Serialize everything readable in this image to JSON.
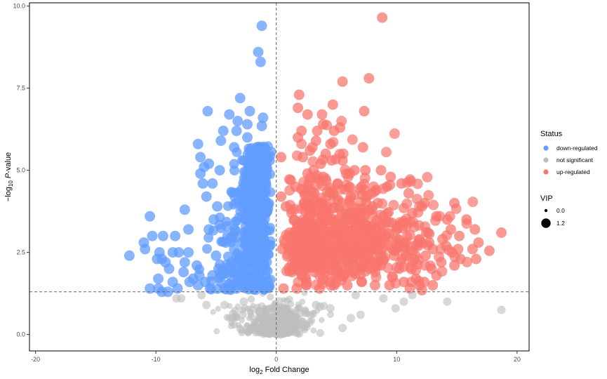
{
  "chart_data": {
    "type": "scatter",
    "title": "",
    "xlabel": {
      "prefix": "log",
      "sub": "2",
      "suffix": " Fold Change"
    },
    "ylabel": {
      "prefix": "−log",
      "sub": "10",
      "mid": " ",
      "italic": "P",
      "suffix": "-value"
    },
    "xlim": [
      -20.5,
      21
    ],
    "ylim": [
      -0.5,
      10.1
    ],
    "x_ticks": [
      {
        "value": -20,
        "label": "-20"
      },
      {
        "value": -10,
        "label": "-10"
      },
      {
        "value": 0,
        "label": "0"
      },
      {
        "value": 10,
        "label": "10"
      },
      {
        "value": 20,
        "label": "20"
      }
    ],
    "y_ticks": [
      {
        "value": 0,
        "label": "0.0"
      },
      {
        "value": 2.5,
        "label": "2.5"
      },
      {
        "value": 5,
        "label": "5.0"
      },
      {
        "value": 7.5,
        "label": "7.5"
      },
      {
        "value": 10,
        "label": "10.0"
      }
    ],
    "vline_x": 0,
    "hline_y": 1.3,
    "legend_status": {
      "title": "Status",
      "items": [
        {
          "label": "down-regulated",
          "color": "#619CFF"
        },
        {
          "label": "not significant",
          "color": "#BEBEBE"
        },
        {
          "label": "up-regulated",
          "color": "#F8766D"
        }
      ]
    },
    "legend_vip": {
      "title": "VIP",
      "items": [
        {
          "label": "0.0",
          "vip": 0.0
        },
        {
          "label": "1.2",
          "vip": 1.2
        }
      ]
    },
    "series": [
      {
        "name": "down-regulated",
        "color": "#619CFF",
        "points": [
          [
            -1.2,
            9.4
          ],
          [
            -1.5,
            8.6
          ],
          [
            -1.3,
            8.3
          ],
          [
            -3.0,
            7.2
          ],
          [
            -5.7,
            6.8
          ],
          [
            -3.9,
            6.7
          ],
          [
            -2.2,
            6.8
          ],
          [
            -1.1,
            6.6
          ],
          [
            -3.2,
            6.5
          ],
          [
            -2.4,
            6.4
          ],
          [
            -1.2,
            6.35
          ],
          [
            -4.4,
            6.2
          ],
          [
            -3.3,
            6.2
          ],
          [
            -2.4,
            6.0
          ],
          [
            -6.5,
            5.8
          ],
          [
            -4.6,
            5.9
          ],
          [
            -3.5,
            5.7
          ],
          [
            -6.3,
            5.4
          ],
          [
            -5.6,
            5.2
          ],
          [
            -6.0,
            5.1
          ],
          [
            -4.7,
            5.0
          ],
          [
            -6.3,
            4.9
          ],
          [
            -7.6,
            3.8
          ],
          [
            -5.3,
            4.6
          ],
          [
            -6.1,
            4.6
          ],
          [
            -5.8,
            4.2
          ],
          [
            -4.9,
            3.9
          ],
          [
            -5.2,
            3.5
          ],
          [
            -7.3,
            3.2
          ],
          [
            -5.6,
            3.2
          ],
          [
            -4.1,
            3.3
          ],
          [
            -10.5,
            3.6
          ],
          [
            -10.3,
            3.0
          ],
          [
            -9.4,
            3.0
          ],
          [
            -8.4,
            3.0
          ],
          [
            -11.0,
            2.8
          ],
          [
            -10.9,
            2.6
          ],
          [
            -9.7,
            2.5
          ],
          [
            -8.6,
            2.5
          ],
          [
            -8.1,
            2.5
          ],
          [
            -7.3,
            2.5
          ],
          [
            -12.2,
            2.4
          ],
          [
            -9.9,
            2.3
          ],
          [
            -9.5,
            2.3
          ],
          [
            -9.2,
            2.2
          ],
          [
            -8.9,
            2.0
          ],
          [
            -7.6,
            2.2
          ],
          [
            -6.6,
            2.1
          ],
          [
            -7.7,
            1.9
          ],
          [
            -6.4,
            1.8
          ],
          [
            -5.3,
            1.8
          ],
          [
            -4.8,
            2.0
          ],
          [
            -10.5,
            1.4
          ],
          [
            -9.8,
            1.4
          ],
          [
            -9.5,
            1.3
          ],
          [
            -9.0,
            1.3
          ],
          [
            -8.6,
            1.6
          ],
          [
            -8.2,
            1.4
          ],
          [
            -7.2,
            1.6
          ],
          [
            -6.5,
            1.5
          ],
          [
            -5.5,
            1.4
          ],
          [
            -4.3,
            1.4
          ],
          [
            -3.8,
            1.4
          ],
          [
            -3.3,
            1.4
          ],
          [
            -9.8,
            1.7
          ],
          [
            -6.9,
            1.7
          ],
          [
            -5.9,
            1.6
          ],
          [
            -4.6,
            1.6
          ],
          [
            -3.6,
            1.9
          ],
          [
            -3.2,
            1.6
          ],
          [
            -2.8,
            1.5
          ],
          [
            -4.2,
            2.8
          ],
          [
            -3.5,
            2.6
          ],
          [
            -5.0,
            2.4
          ],
          [
            -3.7,
            2.2
          ],
          [
            -2.9,
            2.0
          ],
          [
            -4.4,
            1.9
          ]
        ]
      },
      {
        "name": "up-regulated",
        "color": "#F8766D",
        "points": [
          [
            8.8,
            9.65
          ],
          [
            7.7,
            7.8
          ],
          [
            5.5,
            7.7
          ],
          [
            1.9,
            7.3
          ],
          [
            1.8,
            6.9
          ],
          [
            7.3,
            6.8
          ],
          [
            4.7,
            7.0
          ],
          [
            2.6,
            6.7
          ],
          [
            3.8,
            6.7
          ],
          [
            3.9,
            6.4
          ],
          [
            5.3,
            6.3
          ],
          [
            4.8,
            6.2
          ],
          [
            3.4,
            6.2
          ],
          [
            2.1,
            6.2
          ],
          [
            1.8,
            6.0
          ],
          [
            3.3,
            5.9
          ],
          [
            4.5,
            5.8
          ],
          [
            3.0,
            5.7
          ],
          [
            7.2,
            5.7
          ],
          [
            4.1,
            5.5
          ],
          [
            5.5,
            5.3
          ],
          [
            2.2,
            5.4
          ],
          [
            0.4,
            5.4
          ],
          [
            3.7,
            5.2
          ],
          [
            6.5,
            5.0
          ],
          [
            7.4,
            5.0
          ],
          [
            6.1,
            4.9
          ],
          [
            8.7,
            5.0
          ],
          [
            9.5,
            4.8
          ],
          [
            10.4,
            4.6
          ],
          [
            11.0,
            4.3
          ],
          [
            9.2,
            4.5
          ],
          [
            8.3,
            4.4
          ],
          [
            7.3,
            4.4
          ],
          [
            6.2,
            4.2
          ],
          [
            4.5,
            4.3
          ],
          [
            3.0,
            4.1
          ],
          [
            2.3,
            4.0
          ],
          [
            1.6,
            4.5
          ],
          [
            0.4,
            4.2
          ],
          [
            12.3,
            4.0
          ],
          [
            12.1,
            3.9
          ],
          [
            14.8,
            4.0
          ],
          [
            11.3,
            3.7
          ],
          [
            13.3,
            3.6
          ],
          [
            14.2,
            3.5
          ],
          [
            15.8,
            3.5
          ],
          [
            16.5,
            3.2
          ],
          [
            14.5,
            3.2
          ],
          [
            18.7,
            3.1
          ],
          [
            12.6,
            3.1
          ],
          [
            15.2,
            3.0
          ],
          [
            13.8,
            2.9
          ],
          [
            11.9,
            2.9
          ],
          [
            16.8,
            2.8
          ],
          [
            14.1,
            2.7
          ],
          [
            12.7,
            2.8
          ],
          [
            10.6,
            2.7
          ],
          [
            13.0,
            2.6
          ],
          [
            15.1,
            2.6
          ],
          [
            16.3,
            2.6
          ],
          [
            17.7,
            2.55
          ],
          [
            14.6,
            2.5
          ],
          [
            12.4,
            2.4
          ],
          [
            16.6,
            2.3
          ],
          [
            15.3,
            2.3
          ],
          [
            13.7,
            2.2
          ],
          [
            11.3,
            2.2
          ],
          [
            14.8,
            2.1
          ],
          [
            12.9,
            2.0
          ],
          [
            10.2,
            2.0
          ],
          [
            13.3,
            1.8
          ],
          [
            11.6,
            1.7
          ],
          [
            12.3,
            1.6
          ],
          [
            10.6,
            1.6
          ],
          [
            11.9,
            1.5
          ],
          [
            13.0,
            1.5
          ],
          [
            11.1,
            1.4
          ],
          [
            12.1,
            1.35
          ],
          [
            9.4,
            1.5
          ],
          [
            8.2,
            1.5
          ],
          [
            7.1,
            1.6
          ],
          [
            5.9,
            1.5
          ],
          [
            4.8,
            1.5
          ],
          [
            3.6,
            1.4
          ],
          [
            2.5,
            1.5
          ],
          [
            1.7,
            1.4
          ],
          [
            0.6,
            1.4
          ],
          [
            10.0,
            3.2
          ],
          [
            9.1,
            3.0
          ],
          [
            8.4,
            2.8
          ],
          [
            7.6,
            2.6
          ],
          [
            6.6,
            2.5
          ],
          [
            5.8,
            2.3
          ],
          [
            4.9,
            2.1
          ],
          [
            4.0,
            2.0
          ],
          [
            3.2,
            1.9
          ],
          [
            2.4,
            2.0
          ],
          [
            1.3,
            1.9
          ],
          [
            9.6,
            3.4
          ],
          [
            8.9,
            3.6
          ],
          [
            7.9,
            3.3
          ],
          [
            6.9,
            3.1
          ],
          [
            5.6,
            3.3
          ],
          [
            4.4,
            3.0
          ],
          [
            3.4,
            2.8
          ],
          [
            2.1,
            2.7
          ],
          [
            1.0,
            3.0
          ],
          [
            0.5,
            2.6
          ],
          [
            9.8,
            2.4
          ],
          [
            8.7,
            2.1
          ],
          [
            7.8,
            2.0
          ],
          [
            6.3,
            1.9
          ],
          [
            5.2,
            1.9
          ],
          [
            11.8,
            2.7
          ],
          [
            10.8,
            2.4
          ],
          [
            6.1,
            3.7
          ],
          [
            4.2,
            3.7
          ],
          [
            2.8,
            3.4
          ],
          [
            1.5,
            3.5
          ],
          [
            0.8,
            3.9
          ],
          [
            8.0,
            3.9
          ],
          [
            5.1,
            4.6
          ],
          [
            3.9,
            4.8
          ],
          [
            2.6,
            4.9
          ],
          [
            1.2,
            4.7
          ],
          [
            3.1,
            5.0
          ],
          [
            4.6,
            5.3
          ],
          [
            2.8,
            5.6
          ]
        ]
      },
      {
        "name": "not significant",
        "color": "#BEBEBE",
        "points": [
          [
            18.7,
            0.75
          ],
          [
            14.2,
            1.0
          ],
          [
            10.6,
            1.0
          ],
          [
            8.9,
            1.1
          ],
          [
            7.0,
            0.6
          ],
          [
            6.2,
            0.5
          ],
          [
            9.9,
            0.8
          ],
          [
            4.5,
            0.8
          ],
          [
            3.3,
            0.9
          ],
          [
            1.9,
            0.8
          ],
          [
            0.8,
            0.7
          ],
          [
            -0.5,
            0.8
          ],
          [
            -1.4,
            0.7
          ],
          [
            -2.8,
            0.6
          ],
          [
            -4.3,
            0.9
          ],
          [
            -5.8,
            0.9
          ],
          [
            -7.9,
            1.1
          ],
          [
            -8.3,
            1.1
          ],
          [
            -3.6,
            0.5
          ],
          [
            2.4,
            0.3
          ],
          [
            5.5,
            0.2
          ],
          [
            -2.1,
            0.2
          ],
          [
            0.2,
            0.1
          ],
          [
            -0.4,
            0.4
          ],
          [
            1.1,
            0.5
          ],
          [
            -1.0,
            0.3
          ],
          [
            11.3,
            1.2
          ],
          [
            6.6,
            1.2
          ],
          [
            -6.2,
            1.2
          ],
          [
            -2.7,
            1.0
          ]
        ]
      }
    ]
  }
}
